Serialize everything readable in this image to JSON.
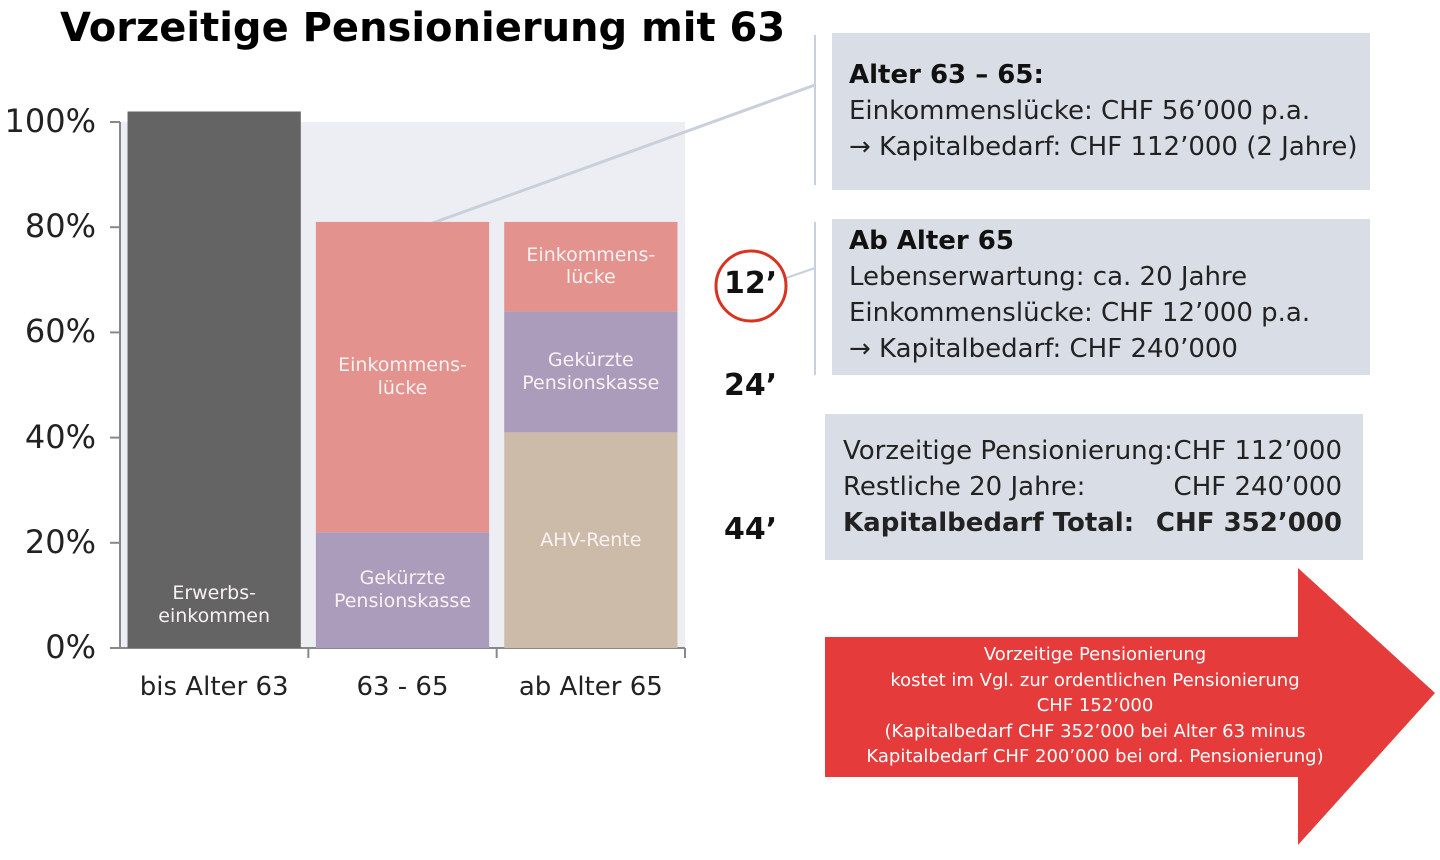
{
  "chart_data": {
    "type": "stacked_bar",
    "title": "Vorzeitige Pensionierung mit 63",
    "categories": [
      "bis Alter 63",
      "63 - 65",
      "ab Alter 65"
    ],
    "series": [
      {
        "name": "Erwerbs-\neinkommen",
        "color": "#646464",
        "values": [
          102,
          null,
          null
        ]
      },
      {
        "name": "AHV-Rente",
        "color": "#cdbba9",
        "values": [
          null,
          null,
          41
        ]
      },
      {
        "name": "Gekürzte\nPensionskasse",
        "color": "#ab9cbb",
        "values": [
          null,
          22,
          23
        ]
      },
      {
        "name": "Einkommens-\nlücke",
        "color": "#e3928d",
        "values": [
          null,
          59,
          17
        ]
      }
    ],
    "ylim": [
      0,
      100
    ],
    "yticks": [
      {
        "value": 0,
        "label": "0%"
      },
      {
        "value": 20,
        "label": "20%"
      },
      {
        "value": 40,
        "label": "40%"
      },
      {
        "value": 60,
        "label": "60%"
      },
      {
        "value": 80,
        "label": "80%"
      },
      {
        "value": 100,
        "label": "100%"
      }
    ],
    "side_labels": [
      "12’",
      "24’",
      "44’"
    ],
    "box_1": {
      "title": "Alter 63 – 65:",
      "lines": [
        "Einkommenslücke: CHF 56’000 p.a.",
        "→ Kapitalbedarf: CHF 112’000 (2 Jahre)"
      ]
    },
    "box_2": {
      "title": "Ab Alter 65",
      "lines": [
        "Lebenserwartung: ca. 20 Jahre",
        "Einkommenslücke: CHF 12’000 p.a.",
        "→ Kapitalbedarf: CHF 240’000"
      ]
    },
    "summary": [
      [
        "Vorzeitige Pensionierung:",
        "CHF 112’000"
      ],
      [
        "Restliche 20 Jahre:",
        "CHF 240’000"
      ],
      [
        "Kapitalbedarf Total:",
        "CHF 352’000"
      ]
    ],
    "arrow_text": [
      "Vorzeitige Pensionierung",
      "kostet im Vgl. zur ordentlichen Pensionierung",
      "CHF 152’000",
      "(Kapitalbedarf CHF 352’000 bei Alter 63 minus",
      "Kapitalbedarf CHF 200’000 bei ord. Pensionierung)"
    ]
  }
}
